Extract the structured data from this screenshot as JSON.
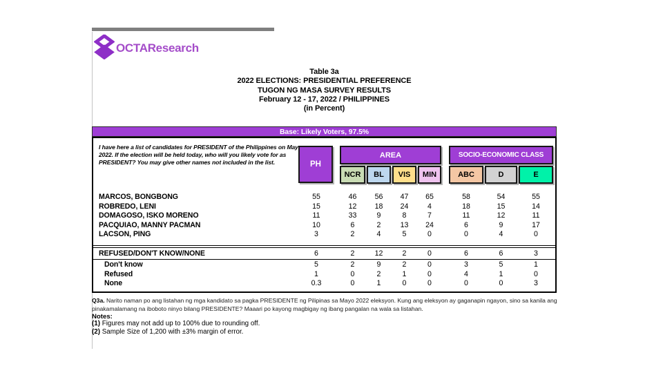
{
  "brand": {
    "name": "OCTAResearch"
  },
  "title": {
    "lines": [
      "Table 3a",
      "2022 ELECTIONS: PRESIDENTIAL PREFERENCE",
      "TUGON NG MASA SURVEY RESULTS",
      "February 12 - 17, 2022 / PHILIPPINES",
      "(in Percent)"
    ]
  },
  "base_bar": {
    "label": "Base: Likely Voters, 97.5%"
  },
  "survey_table": {
    "question": "I have here a list of candidates for PRESIDENT of the Philippines on May 2022. If the election will be held today, who will you likely vote for as PRESIDENT? You may give other names not included in the list.",
    "ph_header": {
      "label": "PH"
    },
    "area": {
      "label": "AREA",
      "cols": [
        {
          "label": "NCR",
          "color": "#c9dcb4"
        },
        {
          "label": "BL",
          "color": "#bdd7ee"
        },
        {
          "label": "VIS",
          "color": "#ffdf8b"
        },
        {
          "label": "MIN",
          "color": "#efc3ef"
        }
      ]
    },
    "sec": {
      "label": "SOCIO-ECONOMIC CLASS",
      "cols": [
        {
          "label": "ABC",
          "color": "#f4c7a4"
        },
        {
          "label": "D",
          "color": "#d2d2d2"
        },
        {
          "label": "E",
          "color": "#00f2a9"
        }
      ]
    },
    "candidate_rows": [
      {
        "label": "MARCOS, BONGBONG",
        "values": [
          "55",
          "46",
          "56",
          "47",
          "65",
          "58",
          "54",
          "55"
        ]
      },
      {
        "label": "ROBREDO, LENI",
        "values": [
          "15",
          "12",
          "18",
          "24",
          "4",
          "18",
          "15",
          "14"
        ]
      },
      {
        "label": "DOMAGOSO, ISKO MORENO",
        "values": [
          "11",
          "33",
          "9",
          "8",
          "7",
          "11",
          "12",
          "11"
        ]
      },
      {
        "label": "PACQUIAO, MANNY PACMAN",
        "values": [
          "10",
          "6",
          "2",
          "13",
          "24",
          "6",
          "9",
          "17"
        ]
      },
      {
        "label": "LACSON, PING",
        "values": [
          "3",
          "2",
          "4",
          "5",
          "0",
          "0",
          "4",
          "0"
        ]
      }
    ],
    "summary_rows": [
      {
        "label": "REFUSED/DON'T KNOW/NONE",
        "values": [
          "6",
          "2",
          "12",
          "2",
          "0",
          "6",
          "6",
          "3"
        ]
      }
    ],
    "detail_rows": [
      {
        "label": "Don't know",
        "values": [
          "5",
          "2",
          "9",
          "2",
          "0",
          "3",
          "5",
          "1"
        ]
      },
      {
        "label": "Refused",
        "values": [
          "1",
          "0",
          "2",
          "1",
          "0",
          "4",
          "1",
          "0"
        ]
      },
      {
        "label": "None",
        "values": [
          "0.3",
          "0",
          "1",
          "0",
          "0",
          "0",
          "0",
          "3"
        ]
      }
    ]
  },
  "footnotes": {
    "q3a_label": "Q3a.",
    "q3a_text": "Narito naman po ang listahan ng mga kandidato sa pagka PRESIDENTE ng Pilipinas sa Mayo 2022 eleksyon. Kung ang eleksyon ay gaganapin ngayon, sino sa kanila ang pinakamalamang na iboboto ninyo bilang PRESIDENTE? Maaari po kayong magbigay ng ibang pangalan na wala sa listahan.",
    "notes_label": "Notes:",
    "note1_label": "(1)",
    "note1_text": "Figures may not add up to 100% due to rounding off.",
    "note2_label": "(2)",
    "note2_text": "Sample Size of 1,200 with ±3% margin of error."
  },
  "colors": {
    "purple": "#9f3ed5",
    "logo_purple": "#8e2fc7",
    "top_rule_gray": "#7f7f7f"
  },
  "chart_data": {
    "type": "table",
    "title": "2022 ELECTIONS: PRESIDENTIAL PREFERENCE — TUGON NG MASA SURVEY RESULTS, February 12 - 17, 2022 / PHILIPPINES (in Percent)",
    "base": "Likely Voters, 97.5%",
    "columns": [
      "PH",
      "NCR",
      "BL",
      "VIS",
      "MIN",
      "ABC",
      "D",
      "E"
    ],
    "rows": [
      {
        "label": "MARCOS, BONGBONG",
        "values": [
          55,
          46,
          56,
          47,
          65,
          58,
          54,
          55
        ]
      },
      {
        "label": "ROBREDO, LENI",
        "values": [
          15,
          12,
          18,
          24,
          4,
          18,
          15,
          14
        ]
      },
      {
        "label": "DOMAGOSO, ISKO MORENO",
        "values": [
          11,
          33,
          9,
          8,
          7,
          11,
          12,
          11
        ]
      },
      {
        "label": "PACQUIAO, MANNY PACMAN",
        "values": [
          10,
          6,
          2,
          13,
          24,
          6,
          9,
          17
        ]
      },
      {
        "label": "LACSON, PING",
        "values": [
          3,
          2,
          4,
          5,
          0,
          0,
          4,
          0
        ]
      },
      {
        "label": "REFUSED/DON'T KNOW/NONE",
        "values": [
          6,
          2,
          12,
          2,
          0,
          6,
          6,
          3
        ]
      },
      {
        "label": "Don't know",
        "values": [
          5,
          2,
          9,
          2,
          0,
          3,
          5,
          1
        ]
      },
      {
        "label": "Refused",
        "values": [
          1,
          0,
          2,
          1,
          0,
          4,
          1,
          0
        ]
      },
      {
        "label": "None",
        "values": [
          0.3,
          0,
          1,
          0,
          0,
          0,
          0,
          3
        ]
      }
    ]
  }
}
